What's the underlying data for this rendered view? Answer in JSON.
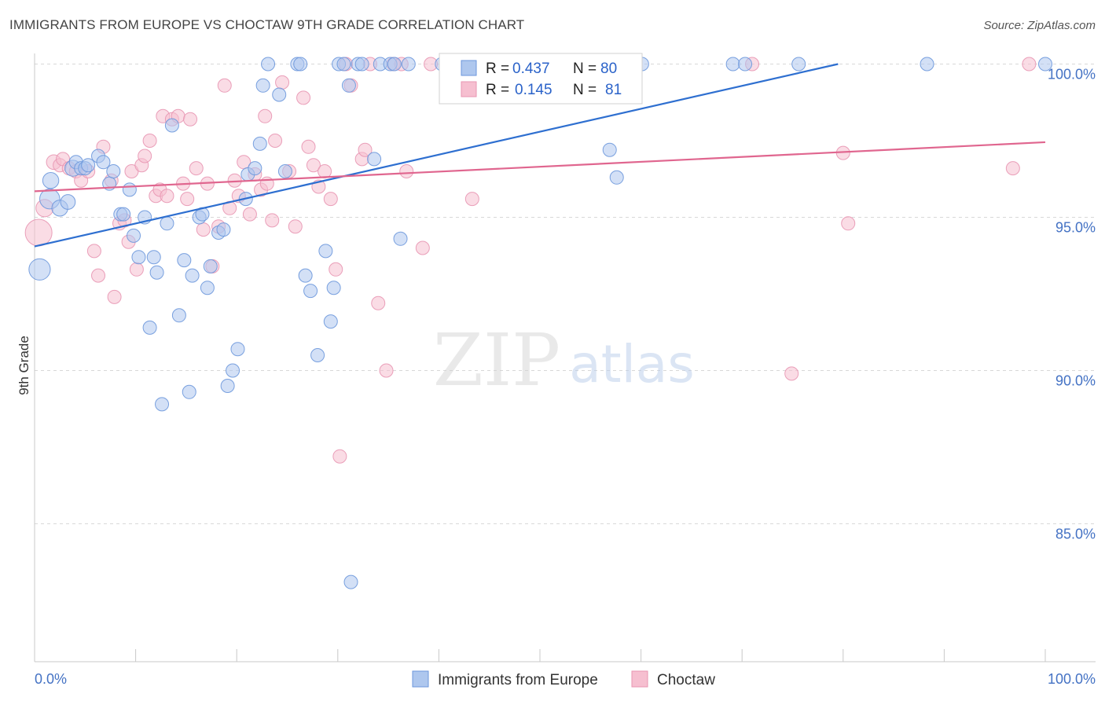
{
  "title": "IMMIGRANTS FROM EUROPE VS CHOCTAW 9TH GRADE CORRELATION CHART",
  "source": "Source: ZipAtlas.com",
  "watermark": {
    "zip": "ZIP",
    "atlas": "atlas"
  },
  "colors": {
    "blue_fill": "#aec7ee",
    "blue_stroke": "#6c97dc",
    "blue_line": "#2e6fd0",
    "pink_fill": "#f6bfd0",
    "pink_stroke": "#e896b2",
    "pink_line": "#e0668f",
    "grid": "#d8d8d8",
    "axis": "#c8c8c8",
    "tick_text": "#4472c4"
  },
  "legend": {
    "blue": {
      "r_label": "R = ",
      "r_value": "0.437",
      "n_label": "N = ",
      "n_value": "80"
    },
    "pink": {
      "r_label": "R = ",
      "r_value": "0.145",
      "n_label": "N = ",
      "n_value": "81"
    }
  },
  "chart_data": {
    "type": "scatter",
    "title": "IMMIGRANTS FROM EUROPE VS CHOCTAW 9TH GRADE CORRELATION CHART",
    "xlabel": "",
    "ylabel": "9th Grade",
    "xlim": [
      0,
      100
    ],
    "ylim": [
      80.5,
      100.5
    ],
    "x_tick_labels": [
      "0.0%",
      "100.0%"
    ],
    "y_ticks": [
      85,
      90,
      95,
      100
    ],
    "y_tick_labels": [
      "85.0%",
      "90.0%",
      "95.0%",
      "100.0%"
    ],
    "series": [
      {
        "name": "Immigrants from Europe",
        "color": "blue",
        "R": 0.437,
        "N": 80,
        "trend": {
          "x": [
            0,
            79.5
          ],
          "y": [
            94.05,
            100.0
          ]
        },
        "points": [
          [
            0.5,
            93.3,
            1.6
          ],
          [
            1.5,
            95.6,
            1.5
          ],
          [
            1.6,
            96.2,
            1.2
          ],
          [
            2.5,
            95.3,
            1.2
          ],
          [
            3.3,
            95.5,
            1.1
          ],
          [
            3.8,
            96.6,
            1.2
          ],
          [
            4.1,
            96.8,
            1.0
          ],
          [
            4.6,
            96.6,
            1.0
          ],
          [
            5.0,
            96.6,
            1.0
          ],
          [
            5.3,
            96.7,
            1.0
          ],
          [
            6.3,
            97.0,
            1.0
          ],
          [
            6.8,
            96.8,
            1.0
          ],
          [
            7.4,
            96.1,
            1.0
          ],
          [
            7.8,
            96.5,
            1.0
          ],
          [
            8.5,
            95.1,
            1.0
          ],
          [
            8.8,
            95.1,
            1.0
          ],
          [
            9.4,
            95.9,
            1.0
          ],
          [
            9.8,
            94.4,
            1.0
          ],
          [
            10.3,
            93.7,
            1.0
          ],
          [
            10.9,
            95.0,
            1.0
          ],
          [
            11.4,
            91.4,
            1.0
          ],
          [
            11.8,
            93.7,
            1.0
          ],
          [
            12.1,
            93.2,
            1.0
          ],
          [
            12.6,
            88.9,
            1.0
          ],
          [
            13.1,
            94.8,
            1.0
          ],
          [
            13.6,
            98.0,
            1.0
          ],
          [
            14.3,
            91.8,
            1.0
          ],
          [
            14.8,
            93.6,
            1.0
          ],
          [
            15.3,
            89.3,
            1.0
          ],
          [
            15.6,
            93.1,
            1.0
          ],
          [
            16.3,
            95.0,
            1.0
          ],
          [
            16.6,
            95.1,
            1.0
          ],
          [
            17.1,
            92.7,
            1.0
          ],
          [
            17.4,
            93.4,
            1.0
          ],
          [
            18.2,
            94.5,
            1.0
          ],
          [
            18.7,
            94.6,
            1.0
          ],
          [
            19.1,
            89.5,
            1.0
          ],
          [
            19.6,
            90.0,
            1.0
          ],
          [
            20.1,
            90.7,
            1.0
          ],
          [
            20.9,
            95.6,
            1.0
          ],
          [
            21.1,
            96.4,
            1.0
          ],
          [
            21.8,
            96.6,
            1.0
          ],
          [
            22.3,
            97.4,
            1.0
          ],
          [
            22.6,
            99.3,
            1.0
          ],
          [
            23.1,
            100.0,
            1.0
          ],
          [
            24.2,
            99.0,
            1.0
          ],
          [
            24.8,
            96.5,
            1.0
          ],
          [
            26.0,
            100.0,
            1.0
          ],
          [
            26.3,
            100.0,
            1.0
          ],
          [
            26.8,
            93.1,
            1.0
          ],
          [
            27.3,
            92.6,
            1.0
          ],
          [
            28.0,
            90.5,
            1.0
          ],
          [
            28.8,
            93.9,
            1.0
          ],
          [
            29.3,
            91.6,
            1.0
          ],
          [
            29.6,
            92.7,
            1.0
          ],
          [
            30.1,
            100.0,
            1.0
          ],
          [
            30.6,
            100.0,
            1.0
          ],
          [
            31.1,
            99.3,
            1.0
          ],
          [
            31.3,
            83.1,
            1.0
          ],
          [
            32.0,
            100.0,
            1.0
          ],
          [
            32.4,
            100.0,
            1.0
          ],
          [
            33.6,
            96.9,
            1.0
          ],
          [
            34.2,
            100.0,
            1.0
          ],
          [
            35.2,
            100.0,
            1.0
          ],
          [
            35.6,
            100.0,
            1.0
          ],
          [
            36.2,
            94.3,
            1.0
          ],
          [
            40.3,
            100.0,
            1.0
          ],
          [
            42.4,
            100.0,
            1.0
          ],
          [
            47.7,
            100.0,
            1.0
          ],
          [
            48.9,
            100.0,
            1.0
          ],
          [
            53.9,
            100.0,
            1.0
          ],
          [
            56.9,
            97.2,
            1.0
          ],
          [
            57.6,
            96.3,
            1.0
          ],
          [
            60.1,
            100.0,
            1.0
          ],
          [
            69.1,
            100.0,
            1.0
          ],
          [
            70.3,
            100.0,
            1.0
          ],
          [
            75.6,
            100.0,
            1.0
          ],
          [
            88.3,
            100.0,
            1.0
          ],
          [
            100.0,
            100.0,
            1.0
          ],
          [
            37.0,
            100.0,
            1.0
          ]
        ]
      },
      {
        "name": "Choctaw",
        "color": "pink",
        "R": 0.145,
        "N": 81,
        "trend": {
          "x": [
            0,
            100
          ],
          "y": [
            95.85,
            97.45
          ]
        },
        "points": [
          [
            0.4,
            94.5,
            2.0
          ],
          [
            1.0,
            95.3,
            1.3
          ],
          [
            1.9,
            96.8,
            1.1
          ],
          [
            2.5,
            96.7,
            1.0
          ],
          [
            2.8,
            96.9,
            1.0
          ],
          [
            3.4,
            96.6,
            1.0
          ],
          [
            4.1,
            96.5,
            1.0
          ],
          [
            4.6,
            96.2,
            1.0
          ],
          [
            5.3,
            96.5,
            1.0
          ],
          [
            5.9,
            93.9,
            1.0
          ],
          [
            6.3,
            93.1,
            1.0
          ],
          [
            6.8,
            97.3,
            1.0
          ],
          [
            7.6,
            96.2,
            1.0
          ],
          [
            7.9,
            92.4,
            1.0
          ],
          [
            8.4,
            94.8,
            1.0
          ],
          [
            8.9,
            94.9,
            1.0
          ],
          [
            9.3,
            94.2,
            1.0
          ],
          [
            9.6,
            96.5,
            1.0
          ],
          [
            10.1,
            93.3,
            1.0
          ],
          [
            10.6,
            96.7,
            1.0
          ],
          [
            10.9,
            97.0,
            1.0
          ],
          [
            11.4,
            97.5,
            1.0
          ],
          [
            12.0,
            95.7,
            1.0
          ],
          [
            12.4,
            95.9,
            1.0
          ],
          [
            12.7,
            98.3,
            1.0
          ],
          [
            13.1,
            95.7,
            1.0
          ],
          [
            13.6,
            98.2,
            1.0
          ],
          [
            14.2,
            98.3,
            1.0
          ],
          [
            14.7,
            96.1,
            1.0
          ],
          [
            15.1,
            95.6,
            1.0
          ],
          [
            15.4,
            98.2,
            1.0
          ],
          [
            16.0,
            96.6,
            1.0
          ],
          [
            16.7,
            94.6,
            1.0
          ],
          [
            17.1,
            96.1,
            1.0
          ],
          [
            17.6,
            93.4,
            1.0
          ],
          [
            18.2,
            94.7,
            1.0
          ],
          [
            18.8,
            99.3,
            1.0
          ],
          [
            19.3,
            95.3,
            1.0
          ],
          [
            19.8,
            96.2,
            1.0
          ],
          [
            20.2,
            95.7,
            1.0
          ],
          [
            20.7,
            96.8,
            1.0
          ],
          [
            21.3,
            95.1,
            1.0
          ],
          [
            21.8,
            96.4,
            1.0
          ],
          [
            22.4,
            95.9,
            1.0
          ],
          [
            23.0,
            96.1,
            1.0
          ],
          [
            23.5,
            94.9,
            1.0
          ],
          [
            23.8,
            97.5,
            1.0
          ],
          [
            24.5,
            99.4,
            1.0
          ],
          [
            25.2,
            96.5,
            1.0
          ],
          [
            25.8,
            94.7,
            1.0
          ],
          [
            26.6,
            98.9,
            1.0
          ],
          [
            27.1,
            97.3,
            1.0
          ],
          [
            27.6,
            96.7,
            1.0
          ],
          [
            28.1,
            96.0,
            1.0
          ],
          [
            28.7,
            96.5,
            1.0
          ],
          [
            29.3,
            95.6,
            1.0
          ],
          [
            29.8,
            93.3,
            1.0
          ],
          [
            30.2,
            87.2,
            1.0
          ],
          [
            30.8,
            100.0,
            1.0
          ],
          [
            31.3,
            99.3,
            1.0
          ],
          [
            32.4,
            96.9,
            1.0
          ],
          [
            32.7,
            97.2,
            1.0
          ],
          [
            34.0,
            92.2,
            1.0
          ],
          [
            34.8,
            90.0,
            1.0
          ],
          [
            35.5,
            100.0,
            1.0
          ],
          [
            36.3,
            100.0,
            1.0
          ],
          [
            36.8,
            96.5,
            1.0
          ],
          [
            38.4,
            94.0,
            1.0
          ],
          [
            39.2,
            100.0,
            1.0
          ],
          [
            43.3,
            95.6,
            1.0
          ],
          [
            44.9,
            100.0,
            1.0
          ],
          [
            47.2,
            100.0,
            1.0
          ],
          [
            56.1,
            100.0,
            1.0
          ],
          [
            71.0,
            100.0,
            1.0
          ],
          [
            74.9,
            89.9,
            1.0
          ],
          [
            80.0,
            97.1,
            1.0
          ],
          [
            80.5,
            94.8,
            1.0
          ],
          [
            96.8,
            96.6,
            1.0
          ],
          [
            98.4,
            100.0,
            1.0
          ],
          [
            22.8,
            98.3,
            1.0
          ],
          [
            33.2,
            100.0,
            1.0
          ]
        ]
      }
    ]
  }
}
